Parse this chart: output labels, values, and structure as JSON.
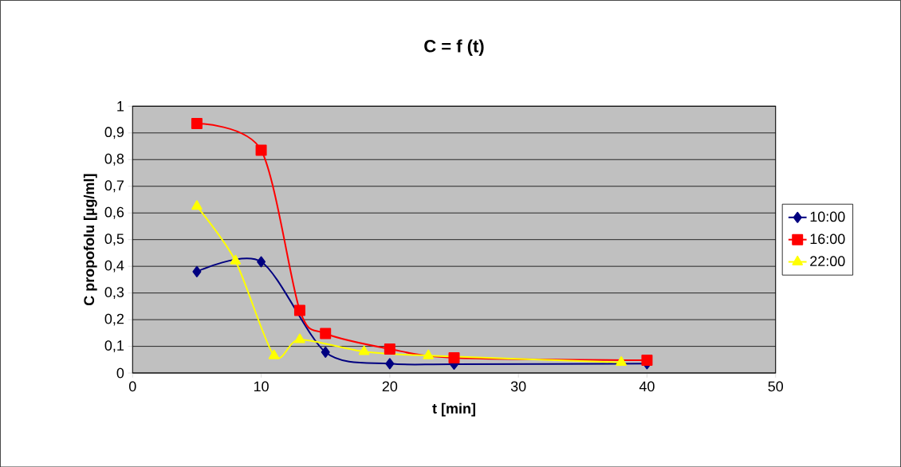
{
  "chart_data": {
    "type": "line",
    "title": "C = f (t)",
    "xlabel": "t [min]",
    "ylabel": "C propofolu [µg/ml]",
    "xlim": [
      0,
      50
    ],
    "xticks": [
      0,
      10,
      20,
      30,
      40,
      50
    ],
    "ylim": [
      0,
      1
    ],
    "yticks": [
      {
        "value": 0,
        "label": "0"
      },
      {
        "value": 0.1,
        "label": "0,1"
      },
      {
        "value": 0.2,
        "label": "0,2"
      },
      {
        "value": 0.3,
        "label": "0,3"
      },
      {
        "value": 0.4,
        "label": "0,4"
      },
      {
        "value": 0.5,
        "label": "0,5"
      },
      {
        "value": 0.6,
        "label": "0,6"
      },
      {
        "value": 0.7,
        "label": "0,7"
      },
      {
        "value": 0.8,
        "label": "0,8"
      },
      {
        "value": 0.9,
        "label": "0,9"
      },
      {
        "value": 1,
        "label": "1"
      }
    ],
    "grid": "y",
    "legend": "right",
    "line_style": "solid",
    "series": [
      {
        "name": "10:00",
        "color": "#000080",
        "marker": "diamond",
        "x": [
          5,
          10,
          15,
          20,
          25,
          40
        ],
        "values": [
          0.38,
          0.417,
          0.078,
          0.035,
          0.033,
          0.035
        ]
      },
      {
        "name": "16:00",
        "color": "#ff0000",
        "marker": "square",
        "x": [
          5,
          10,
          13,
          15,
          20,
          25,
          40
        ],
        "values": [
          0.935,
          0.835,
          0.235,
          0.148,
          0.09,
          0.057,
          0.048
        ]
      },
      {
        "name": "22:00",
        "color": "#ffff00",
        "marker": "triangle",
        "x": [
          5,
          8,
          11,
          13,
          18,
          23,
          38
        ],
        "values": [
          0.625,
          0.42,
          0.065,
          0.125,
          0.08,
          0.065,
          0.04
        ]
      }
    ]
  }
}
